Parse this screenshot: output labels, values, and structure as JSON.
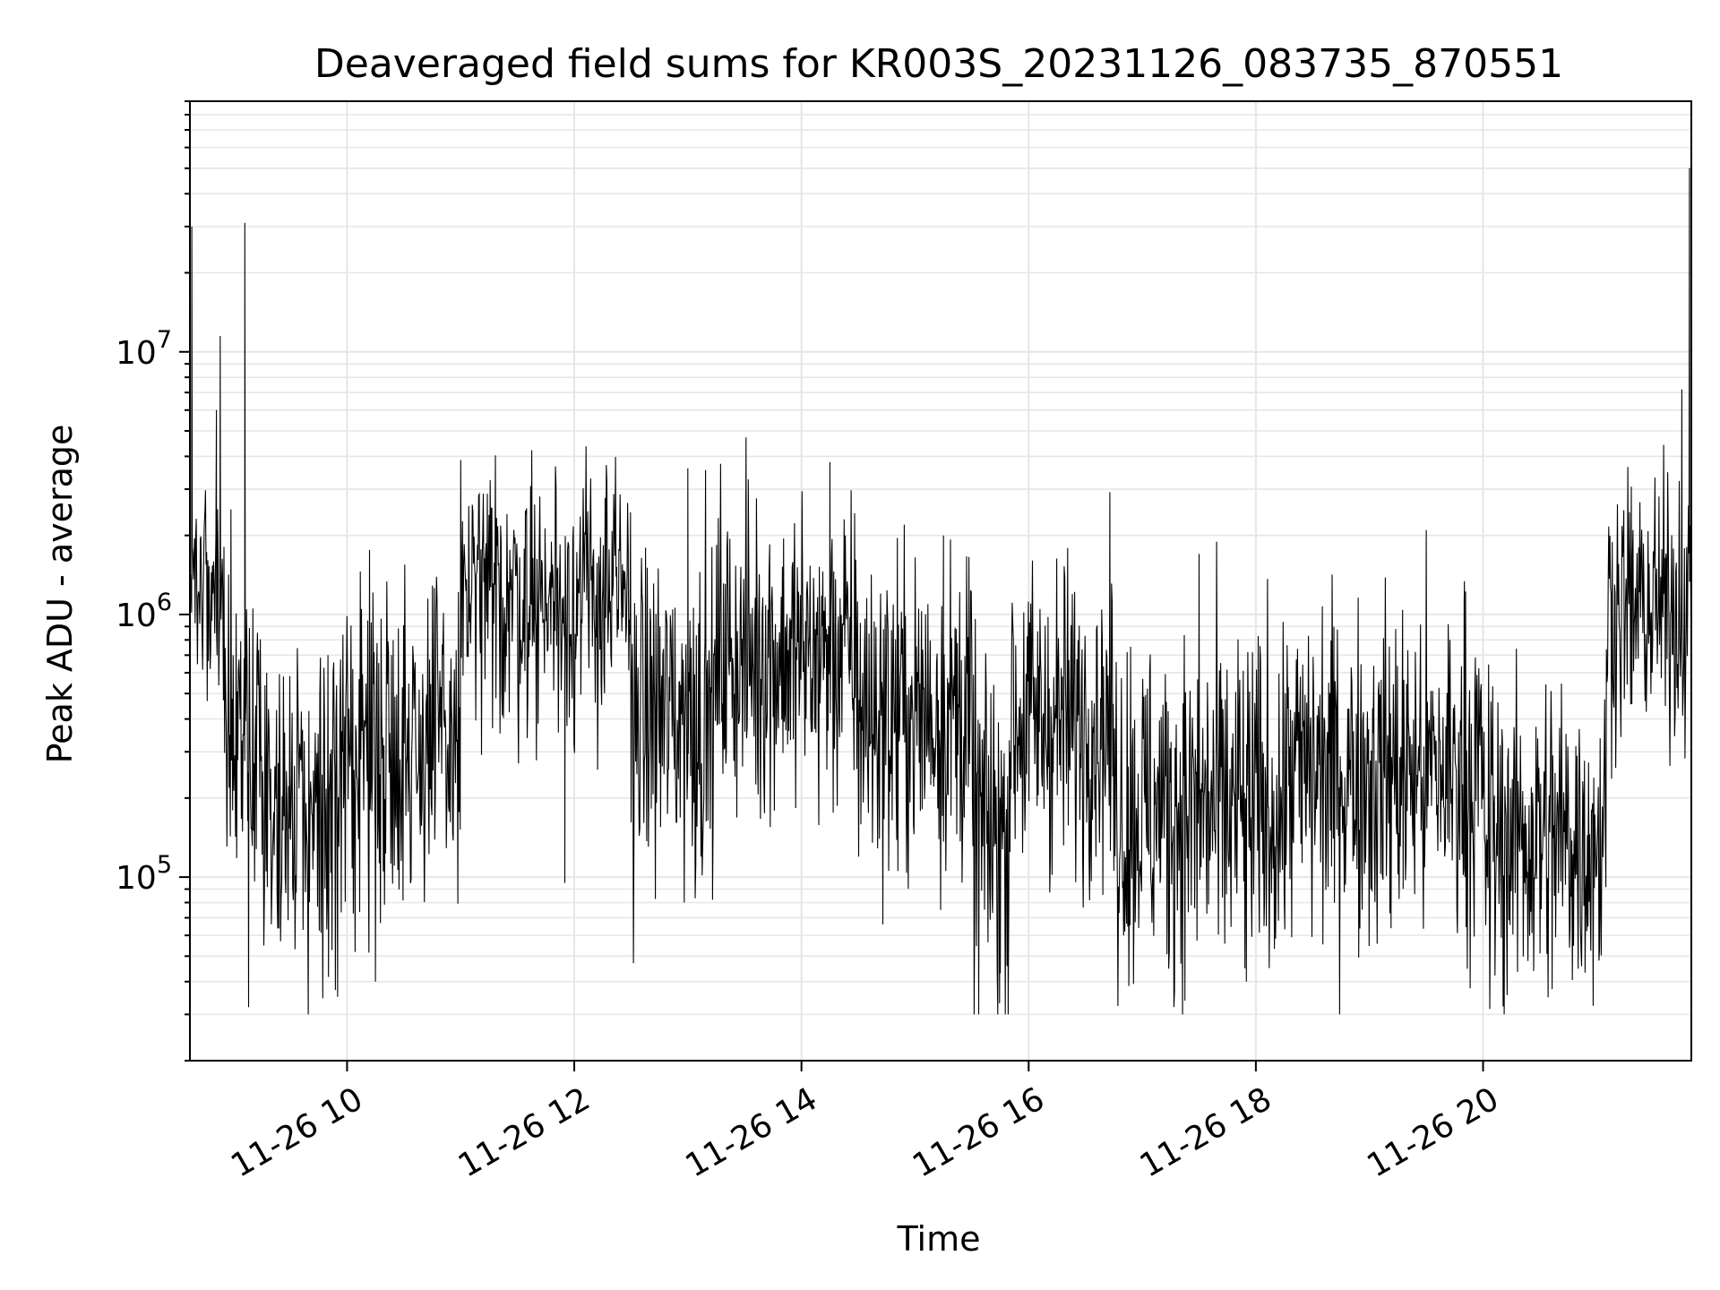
{
  "chart_data": {
    "type": "line",
    "title": "Deaveraged field sums for KR003S_20231126_083735_870551",
    "xlabel": "Time",
    "ylabel": "Peak ADU - average",
    "x_axis": {
      "type": "time",
      "range": [
        "2023-11-26 08:37",
        "2023-11-26 21:50"
      ],
      "ticks": [
        "2023-11-26 10:00",
        "2023-11-26 12:00",
        "2023-11-26 14:00",
        "2023-11-26 16:00",
        "2023-11-26 18:00",
        "2023-11-26 20:00"
      ],
      "tick_labels": [
        "11-26 10",
        "11-26 12",
        "11-26 14",
        "11-26 16",
        "11-26 18",
        "11-26 20"
      ],
      "tick_label_rotation": 30
    },
    "y_axis": {
      "scale": "log",
      "range": [
        20000,
        90000000
      ],
      "ticks": [
        {
          "value": 100000,
          "base": "10",
          "exp": "5"
        },
        {
          "value": 1000000,
          "base": "10",
          "exp": "6"
        },
        {
          "value": 10000000,
          "base": "10",
          "exp": "7"
        }
      ]
    },
    "grid": true,
    "line_color": "#000000",
    "grid_color": "#e6e6e6",
    "segments": [
      {
        "start": "08:37",
        "end": "08:55",
        "level": 1300000,
        "spread": 0.18
      },
      {
        "start": "08:55",
        "end": "09:15",
        "level": 350000,
        "spread": 0.32
      },
      {
        "start": "09:15",
        "end": "10:00",
        "level": 180000,
        "spread": 0.34
      },
      {
        "start": "10:00",
        "end": "11:00",
        "level": 330000,
        "spread": 0.32
      },
      {
        "start": "11:00",
        "end": "12:30",
        "level": 1150000,
        "spread": 0.26
      },
      {
        "start": "12:30",
        "end": "13:15",
        "level": 420000,
        "spread": 0.32
      },
      {
        "start": "13:15",
        "end": "14:30",
        "level": 700000,
        "spread": 0.3
      },
      {
        "start": "14:30",
        "end": "15:30",
        "level": 420000,
        "spread": 0.32
      },
      {
        "start": "15:30",
        "end": "15:50",
        "level": 150000,
        "spread": 0.34
      },
      {
        "start": "15:50",
        "end": "16:45",
        "level": 400000,
        "spread": 0.3
      },
      {
        "start": "16:45",
        "end": "18:15",
        "level": 180000,
        "spread": 0.34
      },
      {
        "start": "18:15",
        "end": "20:00",
        "level": 250000,
        "spread": 0.33
      },
      {
        "start": "20:00",
        "end": "21:05",
        "level": 140000,
        "spread": 0.32
      },
      {
        "start": "21:05",
        "end": "21:50",
        "level": 1050000,
        "spread": 0.25
      }
    ],
    "spikes": [
      {
        "time": "08:38",
        "value": 30000000
      },
      {
        "time": "08:51",
        "value": 6000000
      },
      {
        "time": "08:53",
        "value": 11500000
      },
      {
        "time": "09:06",
        "value": 31000000
      },
      {
        "time": "09:08",
        "value": 32000
      },
      {
        "time": "09:55",
        "value": 35000
      },
      {
        "time": "10:15",
        "value": 40000
      },
      {
        "time": "11:55",
        "value": 95000
      },
      {
        "time": "13:00",
        "value": 3600000
      },
      {
        "time": "14:15",
        "value": 3800000
      },
      {
        "time": "15:15",
        "value": 2000000
      },
      {
        "time": "15:45",
        "value": 43000
      },
      {
        "time": "17:30",
        "value": 1700000
      },
      {
        "time": "17:55",
        "value": 40000
      },
      {
        "time": "19:50",
        "value": 1100000
      },
      {
        "time": "21:45",
        "value": 7200000
      },
      {
        "time": "21:49",
        "value": 50000000
      }
    ]
  }
}
